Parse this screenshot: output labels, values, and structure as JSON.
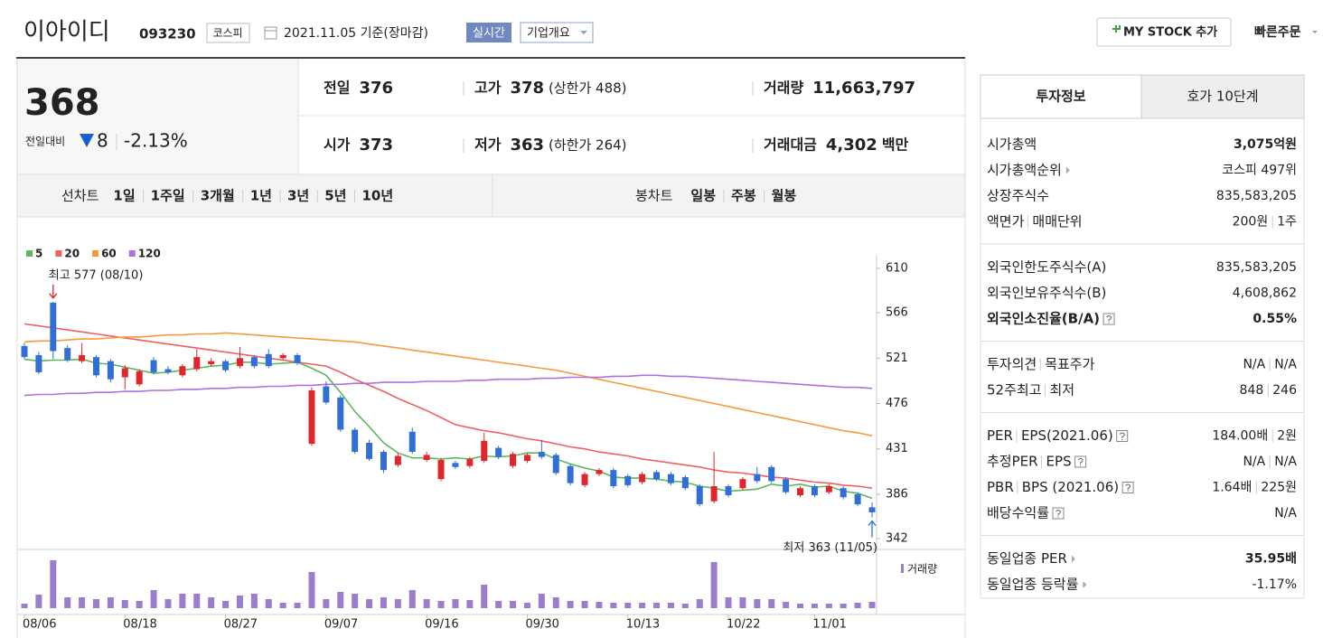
{
  "header": {
    "name": "이아이디",
    "code": "093230",
    "market": "코스피",
    "date": "2021.11.05 기준(장마감)",
    "realtime": "실시간",
    "overview": "기업개요",
    "my_stock": "MY STOCK 추가",
    "quick_order": "빠른주문"
  },
  "price": {
    "current": "368",
    "change_label": "전일대비",
    "change": "8",
    "change_rate": "-2.13%",
    "color": "#1a5fd0"
  },
  "summary": [
    [
      {
        "label": "전일",
        "value": "376"
      },
      {
        "label": "고가",
        "value": "378",
        "color": "#e12c2c",
        "extra": "(상한가 488)"
      },
      {
        "label": "거래량",
        "value": "11,663,797"
      }
    ],
    [
      {
        "label": "시가",
        "value": "373",
        "color": "#1a5fd0"
      },
      {
        "label": "저가",
        "value": "363",
        "color": "#1a5fd0",
        "extra": "(하한가 264)"
      },
      {
        "label": "거래대금",
        "value": "4,302",
        "unit": "백만"
      }
    ]
  ],
  "chart_tabs": {
    "line_label": "선차트",
    "periods": [
      "1일",
      "1주일",
      "3개월",
      "1년",
      "3년",
      "5년",
      "10년"
    ],
    "candle_label": "봉차트",
    "candles": [
      "일봉",
      "주봉",
      "월봉"
    ],
    "active_candle": 0
  },
  "chart_data": {
    "type": "candlestick",
    "categories": [
      "08/06",
      null,
      null,
      null,
      null,
      null,
      null,
      "08/18",
      null,
      null,
      null,
      null,
      null,
      null,
      "08/27",
      null,
      null,
      null,
      null,
      null,
      null,
      "09/07",
      null,
      null,
      null,
      null,
      null,
      null,
      "09/16",
      null,
      null,
      null,
      null,
      null,
      null,
      "09/30",
      null,
      null,
      null,
      null,
      null,
      null,
      "10/13",
      null,
      null,
      null,
      null,
      null,
      null,
      "10/22",
      null,
      null,
      null,
      null,
      null,
      "11/01",
      null,
      null,
      null,
      null
    ],
    "open": [
      533,
      524,
      576,
      531,
      518,
      522,
      518,
      502,
      495,
      519,
      510,
      504,
      510,
      515,
      518,
      513,
      522,
      525,
      521,
      524,
      436,
      493,
      482,
      450,
      437,
      428,
      415,
      448,
      420,
      401,
      417,
      414,
      419,
      432,
      414,
      419,
      428,
      425,
      414,
      395,
      406,
      410,
      404,
      398,
      408,
      406,
      403,
      394,
      379,
      394,
      392,
      406,
      413,
      401,
      385,
      394,
      388,
      392,
      386,
      373
    ],
    "close": [
      522,
      507,
      528,
      519,
      524,
      504,
      500,
      511,
      508,
      507,
      507,
      513,
      522,
      518,
      509,
      521,
      513,
      513,
      524,
      516,
      489,
      477,
      450,
      428,
      421,
      410,
      424,
      428,
      425,
      420,
      413,
      421,
      439,
      423,
      426,
      425,
      423,
      407,
      397,
      406,
      410,
      394,
      395,
      406,
      401,
      397,
      392,
      376,
      394,
      385,
      401,
      399,
      399,
      388,
      392,
      385,
      394,
      383,
      376,
      368
    ],
    "high": [
      536,
      527,
      577,
      534,
      536,
      524,
      520,
      514,
      510,
      522,
      513,
      515,
      530,
      521,
      520,
      532,
      524,
      530,
      526,
      526,
      492,
      498,
      484,
      452,
      440,
      430,
      427,
      452,
      428,
      422,
      419,
      423,
      447,
      434,
      428,
      427,
      440,
      427,
      416,
      408,
      412,
      412,
      406,
      408,
      410,
      408,
      405,
      396,
      428,
      396,
      403,
      413,
      415,
      403,
      394,
      396,
      396,
      394,
      388,
      378
    ],
    "low": [
      520,
      505,
      520,
      517,
      516,
      502,
      497,
      490,
      493,
      505,
      505,
      502,
      508,
      513,
      507,
      511,
      511,
      511,
      519,
      514,
      434,
      475,
      448,
      426,
      419,
      407,
      413,
      426,
      418,
      399,
      411,
      412,
      417,
      421,
      412,
      417,
      421,
      405,
      395,
      393,
      404,
      392,
      393,
      396,
      399,
      395,
      390,
      374,
      377,
      383,
      390,
      397,
      397,
      386,
      383,
      383,
      386,
      381,
      374,
      363
    ],
    "up_color": "#e0262b",
    "down_color": "#2f6fd6",
    "series": [
      {
        "name": "5",
        "color": "#5cb85c",
        "values": [
          520,
          518,
          519,
          519,
          520,
          516,
          515,
          512,
          509,
          506,
          507,
          509,
          511,
          513,
          514,
          517,
          517,
          515,
          516,
          517,
          511,
          504,
          487,
          468,
          453,
          437,
          427,
          422,
          422,
          421,
          422,
          421,
          424,
          423,
          424,
          427,
          427,
          421,
          416,
          412,
          409,
          403,
          402,
          402,
          401,
          399,
          398,
          394,
          392,
          389,
          390,
          391,
          396,
          394,
          396,
          393,
          394,
          389,
          387,
          382
        ]
      },
      {
        "name": "20",
        "color": "#f06060",
        "values": [
          555,
          553,
          551,
          549,
          547,
          545,
          543,
          541,
          539,
          537,
          535,
          533,
          531,
          529,
          527,
          525,
          523,
          521,
          519,
          517,
          515,
          513,
          507,
          500,
          494,
          488,
          481,
          475,
          469,
          462,
          455,
          452,
          449,
          447,
          444,
          441,
          439,
          436,
          433,
          431,
          428,
          426,
          424,
          421,
          419,
          417,
          415,
          413,
          410,
          408,
          407,
          405,
          403,
          402,
          400,
          398,
          397,
          395,
          394,
          392
        ]
      },
      {
        "name": "60",
        "color": "#f59a3c",
        "values": [
          537,
          538,
          538,
          539,
          540,
          540,
          541,
          542,
          542,
          543,
          544,
          544,
          545,
          545,
          546,
          545,
          544,
          543,
          542,
          541,
          540,
          539,
          538,
          537,
          535,
          533,
          531,
          529,
          527,
          525,
          523,
          521,
          519,
          517,
          515,
          513,
          511,
          509,
          506,
          503,
          500,
          497,
          494,
          491,
          488,
          485,
          482,
          479,
          476,
          473,
          470,
          467,
          464,
          461,
          458,
          455,
          452,
          449,
          447,
          444
        ]
      },
      {
        "name": "120",
        "color": "#b070e0",
        "values": [
          484,
          485,
          485,
          486,
          486,
          487,
          487,
          488,
          488,
          489,
          489,
          490,
          490,
          491,
          491,
          492,
          492,
          493,
          493,
          494,
          494,
          495,
          495,
          496,
          496,
          497,
          497,
          497,
          498,
          498,
          498,
          499,
          499,
          500,
          500,
          500,
          501,
          501,
          502,
          502,
          502,
          503,
          503,
          504,
          504,
          503,
          503,
          502,
          501,
          500,
          499,
          498,
          497,
          496,
          495,
          494,
          493,
          492,
          492,
          491
        ]
      }
    ],
    "ylim": [
      342,
      610
    ],
    "yticks": [
      342,
      386,
      431,
      476,
      521,
      566,
      610
    ],
    "grid": false,
    "high_note": "최고 577 (08/10)",
    "low_note": "최저 363 (11/05)",
    "volume_label": "거래량",
    "volume_color": "#9b7dd0",
    "volume_lim": [
      0,
      95000000
    ],
    "volume": [
      8350000,
      25050000,
      88510000,
      20040000,
      20040000,
      16700000,
      20040000,
      15030000,
      13360000,
      33400000,
      16700000,
      26720000,
      26720000,
      20040000,
      13360000,
      23380000,
      26720000,
      16700000,
      10020000,
      10020000,
      66800000,
      16700000,
      30060000,
      26720000,
      16700000,
      20040000,
      16700000,
      33400000,
      16700000,
      13360000,
      16700000,
      15030000,
      43420000,
      13360000,
      13360000,
      10020000,
      26720000,
      20040000,
      13360000,
      13360000,
      11690000,
      10020000,
      10020000,
      10020000,
      10020000,
      10020000,
      8350000,
      16700000,
      85170000,
      20040000,
      20040000,
      16700000,
      16700000,
      11690000,
      8350000,
      8350000,
      8350000,
      8350000,
      10020000,
      11663797
    ]
  },
  "invest_panel": {
    "tabs": [
      "투자정보",
      "호가 10단계"
    ],
    "sections": [
      [
        {
          "label": [
            "시가총액"
          ],
          "value": [
            "3,075억원"
          ],
          "strong": true
        },
        {
          "label": [
            "시가총액순위"
          ],
          "link": true,
          "value": [
            "코스피 497위"
          ]
        },
        {
          "label": [
            "상장주식수"
          ],
          "value": [
            "835,583,205"
          ]
        },
        {
          "label": [
            "액면가",
            "매매단위"
          ],
          "value": [
            "200원",
            "1주"
          ]
        }
      ],
      [
        {
          "label": [
            "외국인한도주식수(A)"
          ],
          "value": [
            "835,583,205"
          ]
        },
        {
          "label": [
            "외국인보유주식수(B)"
          ],
          "value": [
            "4,608,862"
          ]
        },
        {
          "label": [
            "외국인소진율(B/A)"
          ],
          "help": true,
          "value": [
            "0.55%"
          ],
          "strong": true
        }
      ],
      [
        {
          "label": [
            "투자의견",
            "목표주가"
          ],
          "value": [
            "N/A",
            "N/A"
          ]
        },
        {
          "label": [
            "52주최고",
            "최저"
          ],
          "value": [
            "848",
            "246"
          ]
        }
      ],
      [
        {
          "label": [
            "PER",
            "EPS(2021.06)"
          ],
          "help": true,
          "value": [
            "184.00배",
            "2원"
          ]
        },
        {
          "label": [
            "추정PER",
            "EPS"
          ],
          "help": true,
          "value": [
            "N/A",
            "N/A"
          ]
        },
        {
          "label": [
            "PBR",
            "BPS (2021.06)"
          ],
          "help": true,
          "value": [
            "1.64배",
            "225원"
          ]
        },
        {
          "label": [
            "배당수익률"
          ],
          "help": true,
          "value": [
            "N/A"
          ]
        }
      ],
      [
        {
          "label": [
            "동일업종 PER"
          ],
          "link": true,
          "value": [
            "35.95배"
          ],
          "strong": true
        },
        {
          "label": [
            "동일업종 등락률"
          ],
          "link": true,
          "value": [
            "-1.17%"
          ],
          "color": "#1a5fd0"
        }
      ]
    ]
  }
}
